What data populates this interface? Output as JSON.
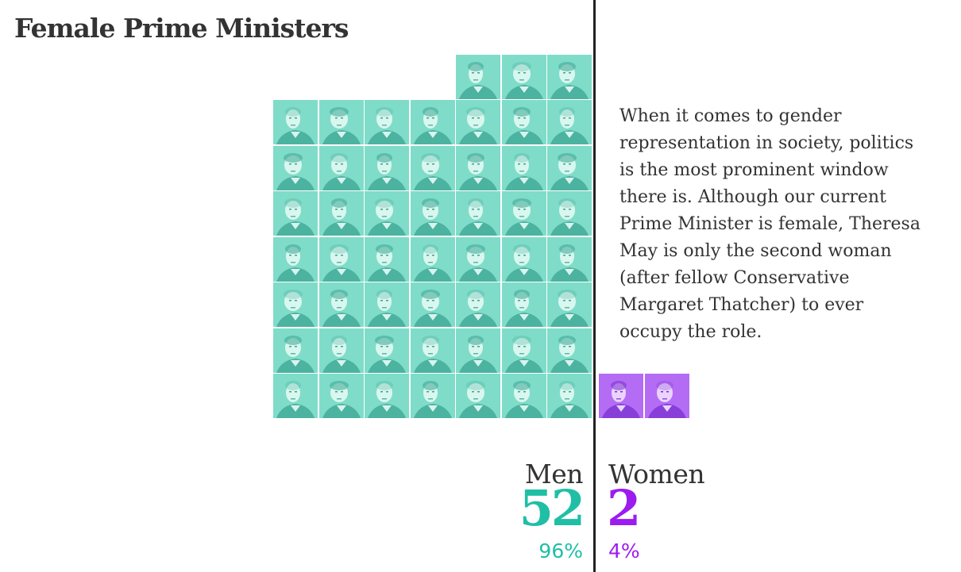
{
  "title": "Female Prime Ministers",
  "body_text": "When it comes to gender representation in society, politics is the most prominent window there is. Although our current Prime Minister is female, Theresa May is only the second woman (after fellow Conservative Margaret Thatcher) to ever occupy the role.",
  "colors": {
    "men": "#1fbfa6",
    "men_portrait": "#7fdcc9",
    "women": "#9c1cf0",
    "women_portrait": "#b46cf5",
    "divider": "#222222"
  },
  "chart_data": {
    "type": "pictogram",
    "title": "Female Prime Ministers",
    "categories": [
      "Men",
      "Women"
    ],
    "values": [
      52,
      2
    ],
    "percentages": [
      "96%",
      "4%"
    ],
    "series": [
      {
        "name": "Men",
        "count": 52,
        "percent": "96%"
      },
      {
        "name": "Women",
        "count": 2,
        "percent": "4%"
      }
    ]
  },
  "men": {
    "label": "Men",
    "count": "52",
    "percent": "96%"
  },
  "women": {
    "label": "Women",
    "count": "2",
    "percent": "4%"
  }
}
